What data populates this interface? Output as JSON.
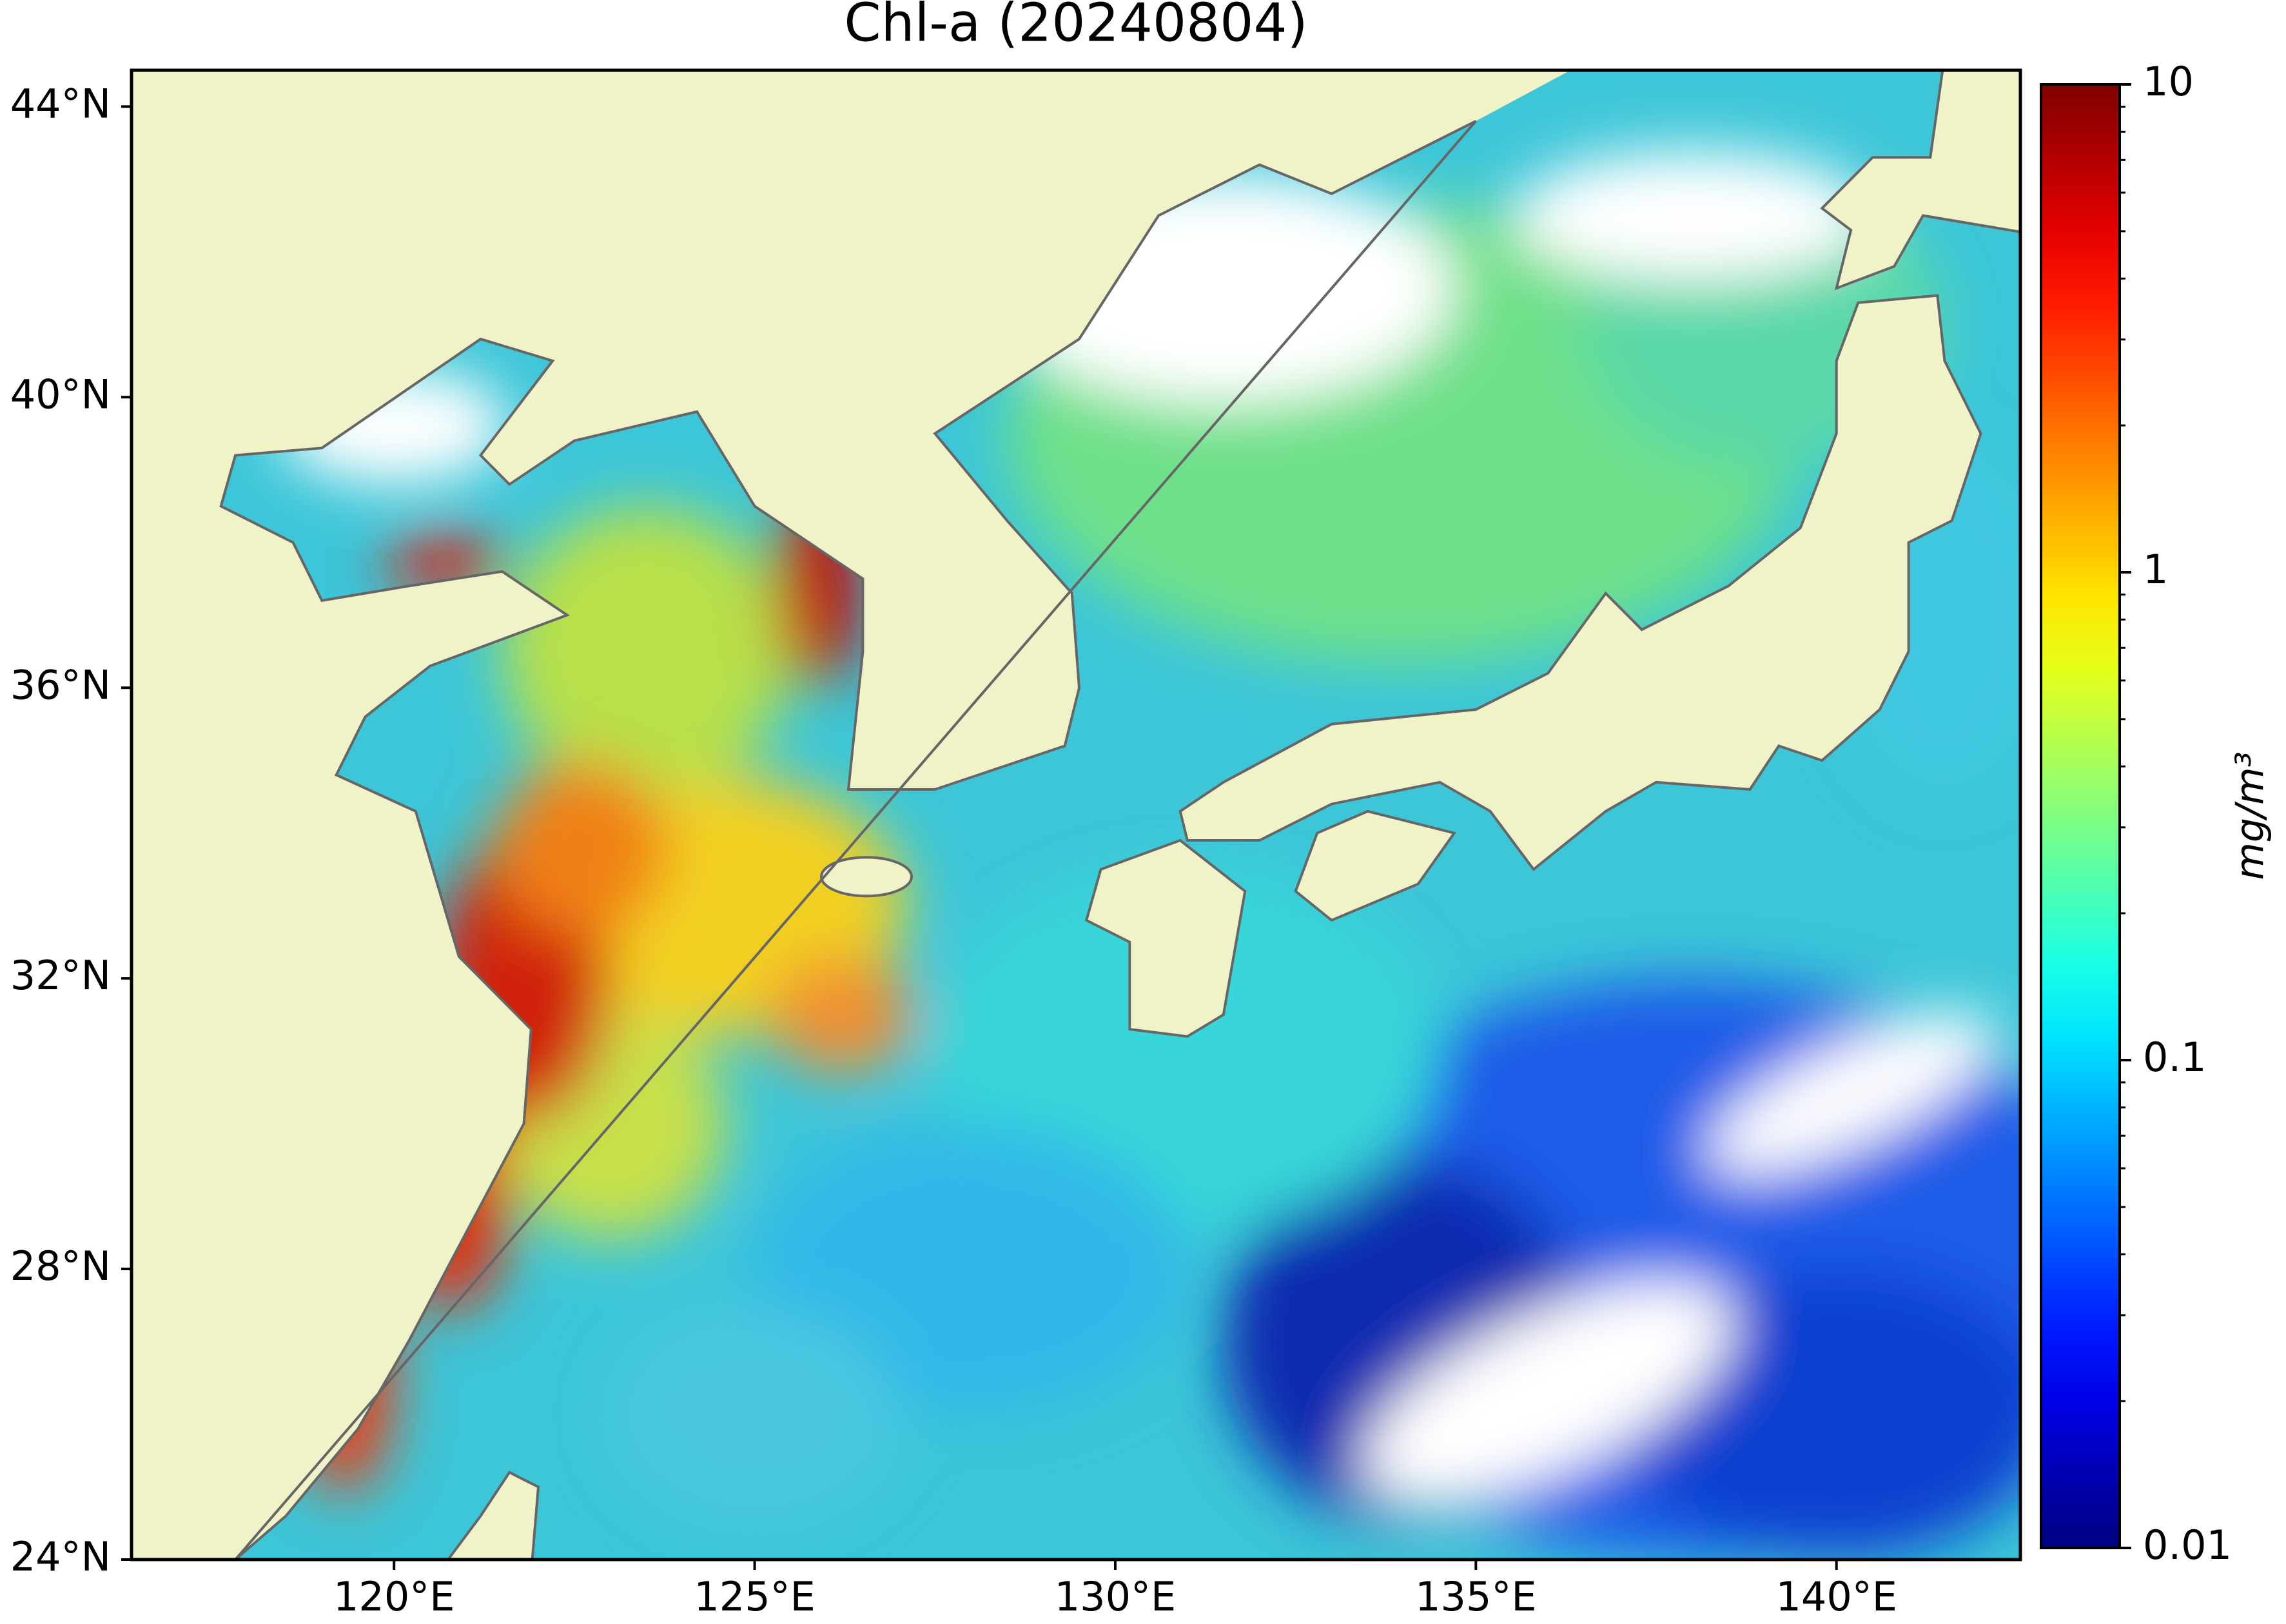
{
  "map": {
    "title": "Chl-a (20240804)",
    "xlim": [
      116.36,
      142.55
    ],
    "ylim": [
      24,
      44.5
    ],
    "xticks": [
      {
        "value": 120,
        "label": "120°E"
      },
      {
        "value": 125,
        "label": "125°E"
      },
      {
        "value": 130,
        "label": "130°E"
      },
      {
        "value": 135,
        "label": "135°E"
      },
      {
        "value": 140,
        "label": "140°E"
      }
    ],
    "yticks": [
      {
        "value": 24,
        "label": "24°N"
      },
      {
        "value": 28,
        "label": "28°N"
      },
      {
        "value": 32,
        "label": "32°N"
      },
      {
        "value": 36,
        "label": "36°N"
      },
      {
        "value": 40,
        "label": "40°N"
      },
      {
        "value": 44,
        "label": "44°N"
      }
    ],
    "colorbar": {
      "label": "mg/m³",
      "scale": "log",
      "colormap": "jet",
      "lim": [
        0.01,
        10
      ],
      "ticks": [
        0.01,
        0.1,
        1,
        10
      ],
      "minor_ticks": [
        0.02,
        0.03,
        0.04,
        0.05,
        0.06,
        0.07,
        0.08,
        0.09,
        0.2,
        0.3,
        0.4,
        0.5,
        0.6,
        0.7,
        0.8,
        0.9,
        2,
        3,
        4,
        5,
        6,
        7,
        8,
        9
      ]
    }
  }
}
